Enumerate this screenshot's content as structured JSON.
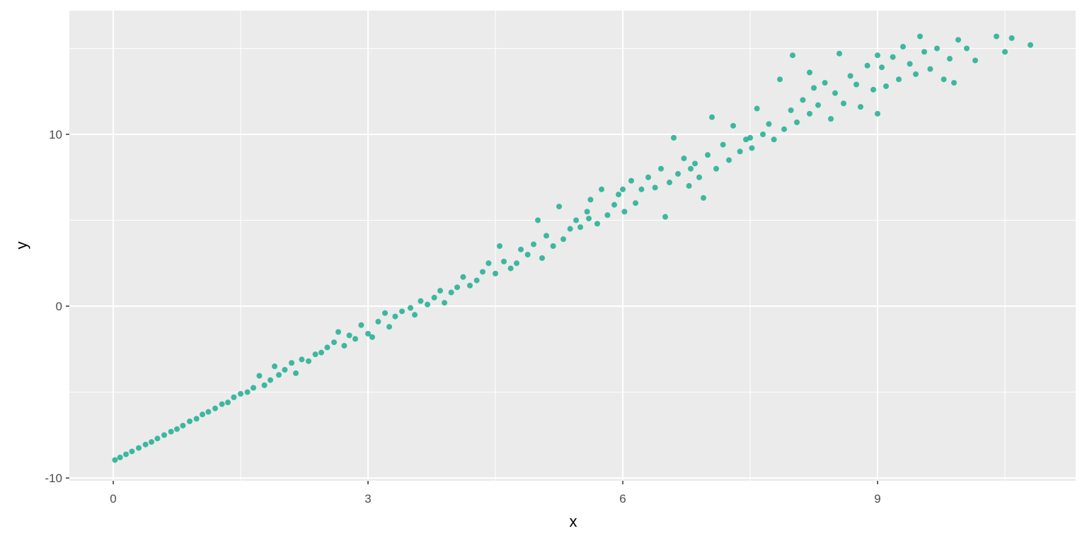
{
  "chart_data": {
    "type": "scatter",
    "x_label": "x",
    "y_label": "y",
    "xlim": [
      -0.517,
      11.333
    ],
    "ylim": [
      -10.16,
      17.2
    ],
    "xticks": [
      0,
      3,
      6,
      9
    ],
    "yticks": [
      -10,
      0,
      10
    ],
    "x_minor_grid": [
      1.5,
      4.5,
      7.5,
      10.5
    ],
    "y_minor_grid": [
      -5,
      5,
      15
    ],
    "grid": true,
    "color": "#1fae92",
    "series": [
      {
        "x": [
          0.02,
          0.08,
          0.15,
          0.22,
          0.3,
          0.38,
          0.45,
          0.52,
          0.6,
          0.68,
          0.75,
          0.82,
          0.9,
          0.98,
          1.05,
          1.12,
          1.2,
          1.28,
          1.35,
          1.42,
          1.5,
          1.58,
          1.65,
          1.72,
          1.78,
          1.85,
          1.9,
          1.95,
          2.02,
          2.1,
          2.15,
          2.22,
          2.3,
          2.38,
          2.45,
          2.52,
          2.6,
          2.65,
          2.72,
          2.78,
          2.85,
          2.92,
          3.0,
          3.05,
          3.12,
          3.2,
          3.25,
          3.32,
          3.4,
          3.5,
          3.55,
          3.62,
          3.7,
          3.78,
          3.85,
          3.9,
          3.98,
          4.05,
          4.12,
          4.2,
          4.28,
          4.35,
          4.42,
          4.5,
          4.55,
          4.6,
          4.68,
          4.75,
          4.8,
          4.88,
          4.95,
          5.0,
          5.05,
          5.1,
          5.18,
          5.25,
          5.3,
          5.38,
          5.45,
          5.5,
          5.58,
          5.62,
          5.7,
          5.75,
          5.82,
          5.9,
          5.95,
          6.02,
          6.1,
          6.15,
          6.22,
          6.3,
          6.38,
          6.45,
          6.5,
          6.55,
          6.6,
          6.65,
          6.72,
          6.78,
          6.85,
          6.9,
          6.95,
          7.0,
          7.05,
          7.1,
          7.18,
          7.25,
          7.3,
          7.38,
          7.45,
          7.52,
          7.58,
          7.65,
          7.72,
          7.78,
          7.85,
          7.9,
          7.98,
          8.0,
          8.05,
          8.12,
          8.2,
          8.25,
          8.3,
          8.38,
          8.45,
          8.5,
          8.55,
          8.6,
          8.68,
          8.75,
          8.8,
          8.88,
          8.95,
          9.0,
          9.05,
          9.1,
          9.18,
          9.25,
          9.3,
          9.38,
          9.45,
          9.5,
          9.55,
          9.62,
          9.7,
          9.78,
          9.85,
          9.9,
          9.95,
          10.05,
          10.15,
          10.4,
          10.5,
          10.58,
          10.8,
          9.0,
          8.2,
          7.5,
          6.8,
          6.0,
          5.6
        ],
        "y": [
          -8.95,
          -8.8,
          -8.62,
          -8.45,
          -8.25,
          -8.05,
          -7.9,
          -7.7,
          -7.5,
          -7.3,
          -7.15,
          -6.95,
          -6.7,
          -6.55,
          -6.3,
          -6.15,
          -5.95,
          -5.7,
          -5.6,
          -5.3,
          -5.1,
          -5.0,
          -4.75,
          -4.05,
          -4.6,
          -4.3,
          -3.5,
          -4.0,
          -3.7,
          -3.3,
          -3.9,
          -3.1,
          -3.2,
          -2.8,
          -2.7,
          -2.4,
          -2.1,
          -1.5,
          -2.3,
          -1.7,
          -1.9,
          -1.1,
          -1.6,
          -1.8,
          -0.9,
          -0.4,
          -1.2,
          -0.6,
          -0.3,
          -0.1,
          -0.5,
          0.3,
          0.1,
          0.5,
          0.9,
          0.2,
          0.8,
          1.1,
          1.7,
          1.2,
          1.5,
          2.0,
          2.5,
          1.9,
          3.5,
          2.6,
          2.2,
          2.5,
          3.3,
          3.0,
          3.6,
          5.0,
          2.8,
          4.1,
          3.5,
          5.8,
          3.9,
          4.5,
          5.0,
          4.6,
          5.5,
          6.2,
          4.8,
          6.8,
          5.3,
          5.9,
          6.5,
          5.5,
          7.3,
          6.0,
          6.8,
          7.5,
          6.9,
          8.0,
          5.2,
          7.2,
          9.8,
          7.7,
          8.6,
          7.0,
          8.3,
          7.5,
          6.3,
          8.8,
          11.0,
          8.0,
          9.4,
          8.5,
          10.5,
          9.0,
          9.7,
          9.2,
          11.5,
          10.0,
          10.6,
          9.7,
          13.2,
          10.3,
          11.4,
          14.6,
          10.7,
          12.0,
          11.2,
          12.7,
          11.7,
          13.0,
          10.9,
          12.4,
          14.7,
          11.8,
          13.4,
          12.9,
          11.6,
          14.0,
          12.6,
          11.2,
          13.9,
          12.8,
          14.5,
          13.2,
          15.1,
          14.1,
          13.5,
          15.7,
          14.8,
          13.8,
          15.0,
          13.2,
          14.4,
          13.0,
          15.5,
          15.0,
          14.3,
          15.7,
          14.8,
          15.6,
          15.2,
          14.6,
          13.6,
          9.8,
          8.0,
          6.8,
          5.1
        ]
      }
    ]
  }
}
